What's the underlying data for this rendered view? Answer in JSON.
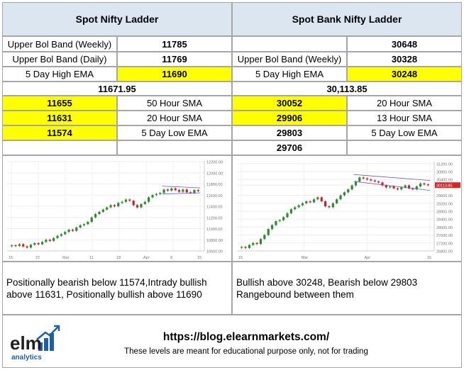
{
  "left": {
    "title": "Spot Nifty Ladder",
    "rows": [
      {
        "label": "Upper Bol Band (Weekly)",
        "value": "11785"
      },
      {
        "label": "Upper Bol Band (Daily)",
        "value": "11769"
      },
      {
        "label": "5 Day High EMA",
        "value": "11690"
      }
    ],
    "spot": "11671.95",
    "lower": [
      {
        "value": "11655",
        "label": "50 Hour SMA"
      },
      {
        "value": "11631",
        "label": "20 Hour SMA"
      },
      {
        "value": "11574",
        "label": "5 Day Low EMA"
      }
    ],
    "comment": "Positionally bearish below 11574,Intrady bullish above 11631, Positionally bullish above 11690"
  },
  "right": {
    "title": "Spot Bank Nifty Ladder",
    "rows": [
      {
        "label": "",
        "value": "30648"
      },
      {
        "label": "Upper Bol Band (Weekly)",
        "value": "30328"
      },
      {
        "label": "5 Day High EMA",
        "value": "30248"
      }
    ],
    "spot": "30,113.85",
    "lower": [
      {
        "value": "30052",
        "label": "20 Hour SMA"
      },
      {
        "value": "29906",
        "label": "13 Hour SMA"
      },
      {
        "value": "29803",
        "label": "5 Day Low EMA"
      },
      {
        "value": "29706",
        "label": ""
      }
    ],
    "comment": "Bullish above 30248, Bearish below 29803 Rangebound between them"
  },
  "chart_data": [
    {
      "type": "candlestick",
      "y_ticks": [
        "12200.00",
        "12000.00",
        "11800.00",
        "11600.00",
        "11400.00",
        "11200.00",
        "11000.00",
        "10800.00",
        "10600.00"
      ],
      "ylim": [
        10600,
        12200
      ],
      "x_ticks": [
        "15",
        "22",
        "Mar",
        "11",
        "18",
        "Apr",
        "8",
        "15"
      ],
      "last_price_label": "11671.95",
      "close": [
        10700,
        10690,
        10720,
        10680,
        10660,
        10710,
        10740,
        10720,
        10760,
        10800,
        10780,
        10830,
        10870,
        10900,
        10940,
        10980,
        10960,
        11020,
        11060,
        11080,
        11120,
        11200,
        11260,
        11300,
        11340,
        11380,
        11420,
        11400,
        11460,
        11480,
        11520,
        11500,
        11420,
        11380,
        11440,
        11480,
        11560,
        11600,
        11620,
        11640,
        11700,
        11680,
        11720,
        11690,
        11660,
        11700,
        11650,
        11640,
        11690,
        11672
      ]
    },
    {
      "type": "candlestick",
      "y_ticks": [
        "31200.00",
        "30800.00",
        "30400.00",
        "30113.85",
        "29600.00",
        "29200.00",
        "28800.00",
        "28400.00",
        "28000.00",
        "27600.00",
        "27200.00",
        "26800.00"
      ],
      "ylim": [
        26800,
        31300
      ],
      "x_ticks": [
        "15",
        "Mar",
        "Apr",
        "15"
      ],
      "last_price_label": "30113.85",
      "close": [
        27000,
        26950,
        27100,
        27200,
        27150,
        27400,
        27600,
        27900,
        28100,
        28300,
        28350,
        28500,
        28700,
        28900,
        29000,
        29100,
        29200,
        29300,
        29250,
        29400,
        29500,
        29300,
        29050,
        29000,
        29200,
        29400,
        29600,
        29750,
        29900,
        30100,
        30300,
        30500,
        30450,
        30400,
        30350,
        30300,
        30250,
        30100,
        30000,
        30050,
        29950,
        29900,
        30000,
        30100,
        29950,
        29900,
        30050,
        30200,
        30150,
        30114
      ]
    }
  ],
  "footer": {
    "logo_text": "elm",
    "logo_sub": "analytics",
    "url": "https://blog.elearnmarkets.com/",
    "disclaimer": "These levels are meant for educational purpose only, not for trading"
  },
  "colors": {
    "header_bg": "#dce6f1",
    "highlight": "#ffff00",
    "candle_up": "#2e8b2e",
    "candle_down": "#cc2222",
    "brand_blue": "#1f5fa8"
  }
}
